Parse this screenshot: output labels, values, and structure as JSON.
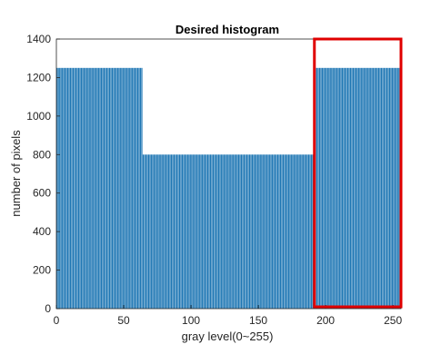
{
  "chart_data": {
    "type": "bar",
    "title": "Desired histogram",
    "xlabel": "gray level(0~255)",
    "ylabel": "number of pixels",
    "xlim": [
      0,
      256
    ],
    "ylim": [
      0,
      1400
    ],
    "xticks": [
      0,
      50,
      100,
      150,
      200,
      250
    ],
    "yticks": [
      0,
      200,
      400,
      600,
      800,
      1000,
      1200,
      1400
    ],
    "bar_width": 0.8,
    "segments": [
      {
        "x_start": 0,
        "x_end": 63,
        "value": 1250
      },
      {
        "x_start": 64,
        "x_end": 191,
        "value": 800
      },
      {
        "x_start": 192,
        "x_end": 255,
        "value": 1250
      }
    ],
    "bar_color": "#1f77b4",
    "grid": false,
    "highlight": {
      "x_range": [
        191,
        256
      ],
      "y_range": [
        0,
        1400
      ],
      "color": "#e00000"
    }
  }
}
